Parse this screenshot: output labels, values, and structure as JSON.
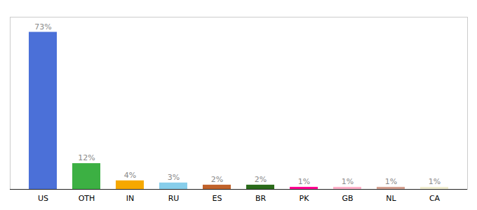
{
  "chart_data": {
    "type": "bar",
    "categories": [
      "US",
      "OTH",
      "IN",
      "RU",
      "ES",
      "BR",
      "PK",
      "GB",
      "NL",
      "CA"
    ],
    "values": [
      73,
      12,
      4,
      3,
      2,
      2,
      1,
      1,
      1,
      1
    ],
    "value_labels": [
      "73%",
      "12%",
      "4%",
      "3%",
      "2%",
      "2%",
      "1%",
      "1%",
      "1%",
      "1%"
    ],
    "colors": [
      "#4B70D8",
      "#3CB043",
      "#F5A800",
      "#87CEEB",
      "#C0622A",
      "#2A6B1A",
      "#FF0090",
      "#FFB0C8",
      "#D4A090",
      "#F0EDD0"
    ],
    "ylim": [
      0,
      80
    ],
    "data_labels": true,
    "tick_labels": "x",
    "grid": false
  }
}
